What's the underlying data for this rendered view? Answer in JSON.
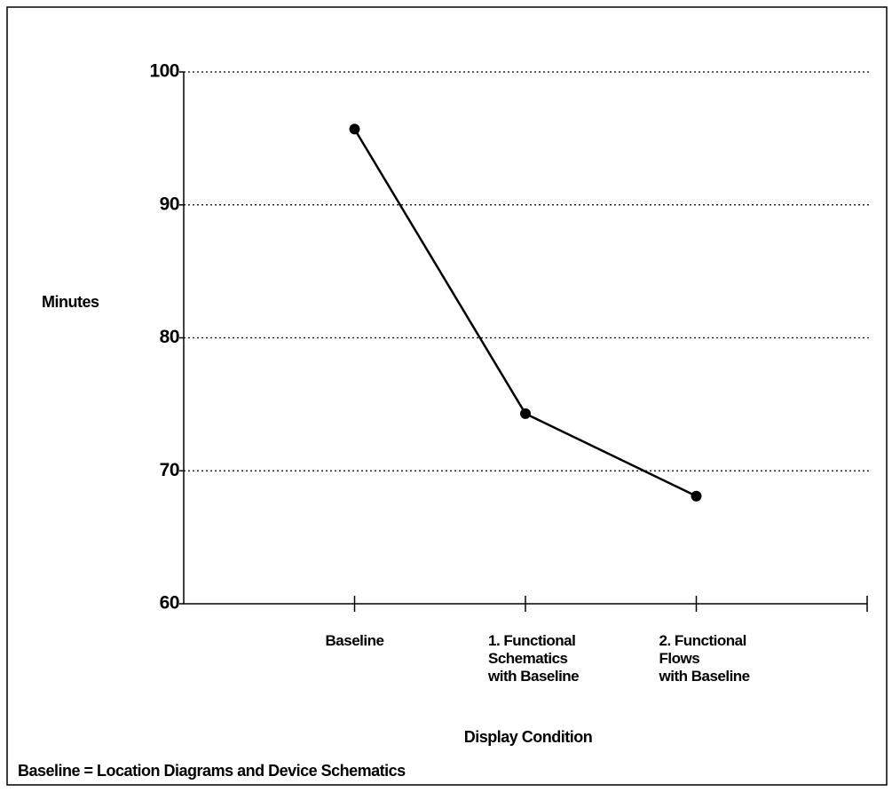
{
  "chart_data": {
    "type": "line",
    "y_label": "Minutes",
    "x_label": "Display Condition",
    "footnote": "Baseline = Location Diagrams and Device Schematics",
    "categories": [
      "Baseline",
      "1. Functional\nSchematics\nwith Baseline",
      "2. Functional\nFlows\nwith Baseline"
    ],
    "values": [
      95.7,
      74.3,
      68.1
    ],
    "color": "#000000",
    "ylim": [
      60,
      100
    ],
    "yticks": [
      60,
      70,
      80,
      90,
      100
    ],
    "grid": true
  }
}
